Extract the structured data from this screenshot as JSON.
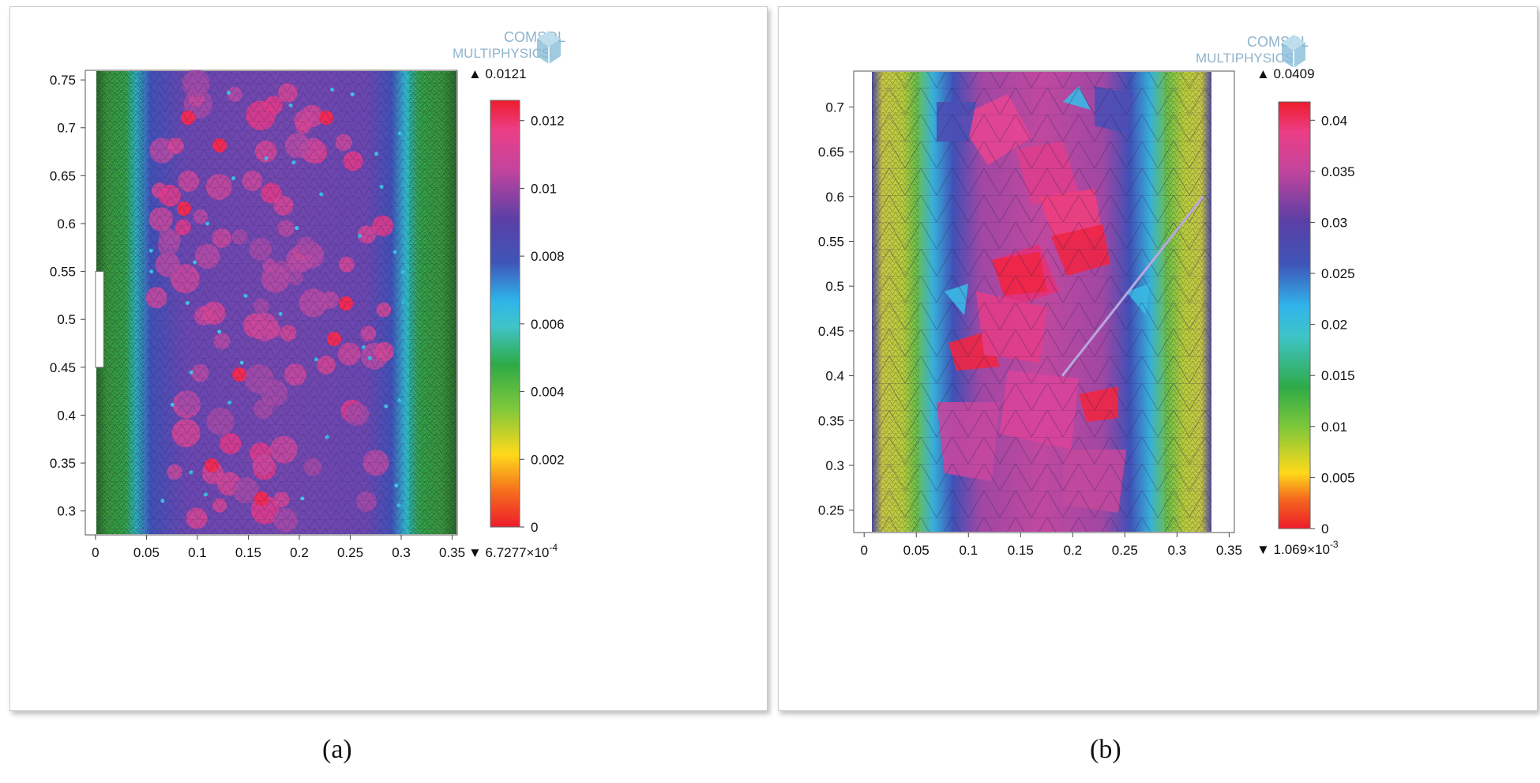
{
  "captions": {
    "a": "(a)",
    "b": "(b)"
  },
  "logo": {
    "line1": "COMSOL",
    "line2": "MULTIPHYSICS"
  },
  "chart_data": [
    {
      "type": "heatmap",
      "panel": "a",
      "x_ticks": [
        "0",
        "0.05",
        "0.1",
        "0.15",
        "0.2",
        "0.25",
        "0.3",
        "0.35"
      ],
      "y_ticks": [
        "0.3",
        "0.35",
        "0.4",
        "0.45",
        "0.5",
        "0.55",
        "0.6",
        "0.65",
        "0.7",
        "0.75"
      ],
      "xlim": [
        -0.01,
        0.355
      ],
      "ylim": [
        0.275,
        0.76
      ],
      "colorbar": {
        "max_label": "▲ 0.0121",
        "min_label": "▼ 6.7277×10",
        "min_exp": "-4",
        "ticks": [
          "0",
          "0.002",
          "0.004",
          "0.006",
          "0.008",
          "0.01",
          "0.012"
        ],
        "range": [
          0,
          0.0126
        ]
      },
      "wall_band": {
        "x": [
          0,
          0.008
        ],
        "y": [
          0.45,
          0.55
        ]
      }
    },
    {
      "type": "heatmap",
      "panel": "b",
      "x_ticks": [
        "0",
        "0.05",
        "0.1",
        "0.15",
        "0.2",
        "0.25",
        "0.3",
        "0.35"
      ],
      "y_ticks": [
        "0.25",
        "0.3",
        "0.35",
        "0.4",
        "0.45",
        "0.5",
        "0.55",
        "0.6",
        "0.65",
        "0.7"
      ],
      "xlim": [
        -0.01,
        0.355
      ],
      "ylim": [
        0.225,
        0.74
      ],
      "colorbar": {
        "max_label": "▲ 0.0409",
        "min_label": "▼ 1.069×10",
        "min_exp": "-3",
        "ticks": [
          "0",
          "0.005",
          "0.01",
          "0.015",
          "0.02",
          "0.025",
          "0.03",
          "0.035",
          "0.04"
        ],
        "range": [
          0,
          0.0418
        ]
      },
      "crack_line": {
        "x": [
          0.19,
          0.325
        ],
        "y": [
          0.4,
          0.6
        ]
      }
    }
  ]
}
